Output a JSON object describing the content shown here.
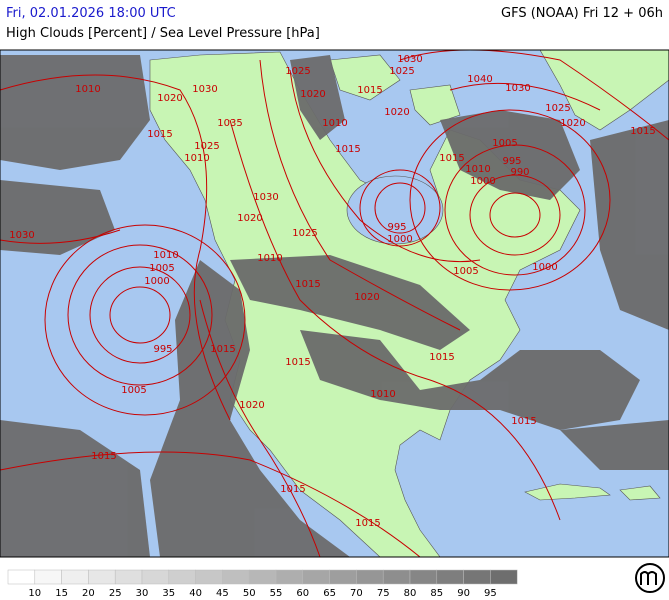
{
  "header": {
    "datetime": "Fri, 02.01.2026 18:00 UTC",
    "model": "GFS (NOAA) Fri 12 + 06h",
    "subtitle": "High Clouds [Percent] / Sea Level Pressure [hPa]"
  },
  "map": {
    "isobar_labels": [
      1010,
      1030,
      1025,
      1030,
      1025,
      1040,
      1030,
      1020,
      1020,
      1015,
      1035,
      1025,
      1015,
      1010,
      1020,
      1010,
      1015,
      1025,
      1020,
      1015,
      1005,
      1015,
      995,
      990,
      1010,
      1000,
      1030,
      1020,
      1030,
      995,
      1000,
      1025,
      1010,
      1005,
      1000,
      1010,
      1005,
      1000,
      1015,
      1020,
      995,
      1015,
      1015,
      1015,
      1005,
      1010,
      1020,
      1015,
      1015,
      1015,
      1015
    ]
  },
  "legend": {
    "values": [
      10,
      15,
      20,
      25,
      30,
      35,
      40,
      45,
      50,
      55,
      60,
      65,
      70,
      75,
      80,
      85,
      90,
      95
    ]
  }
}
